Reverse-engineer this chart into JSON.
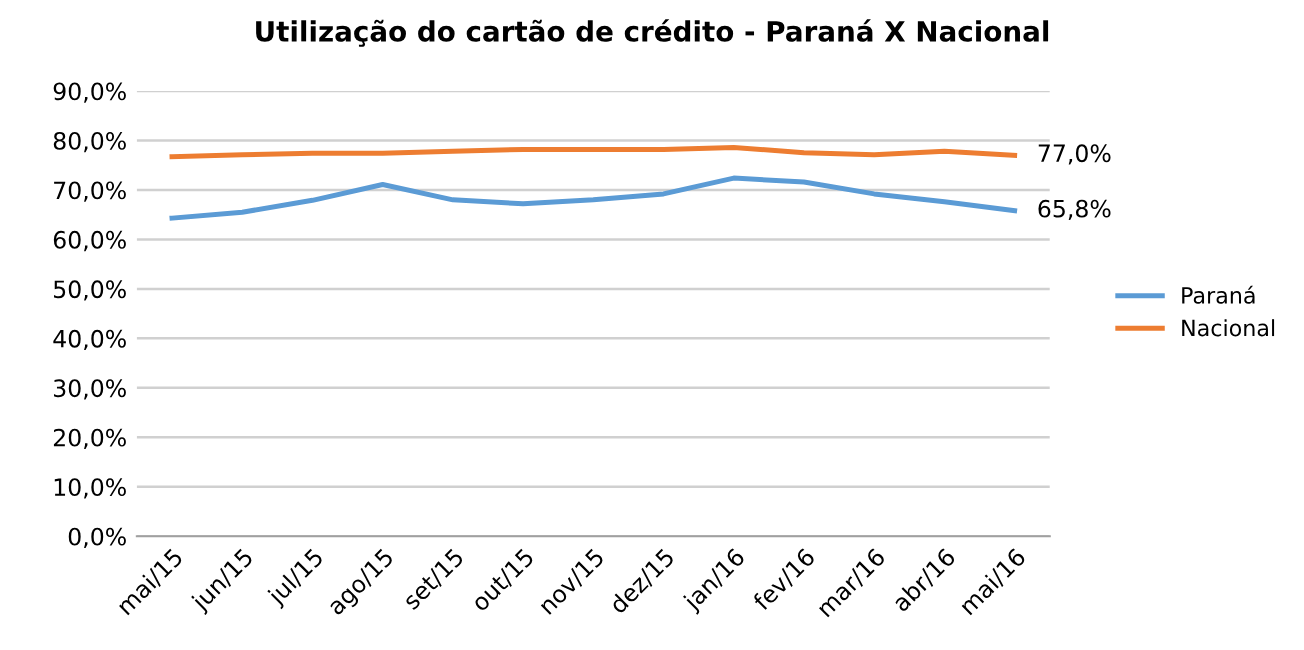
{
  "chart_data": {
    "type": "line",
    "title": "Utilização do cartão de crédito - Paraná X Nacional",
    "categories": [
      "mai/15",
      "jun/15",
      "jul/15",
      "ago/15",
      "set/15",
      "out/15",
      "nov/15",
      "dez/15",
      "jan/16",
      "fev/16",
      "mar/16",
      "abr/16",
      "mai/16"
    ],
    "series": [
      {
        "name": "Paraná",
        "color": "#5b9bd5",
        "values": [
          64.3,
          65.5,
          67.9,
          71.1,
          68.0,
          67.2,
          68.0,
          69.2,
          72.4,
          71.6,
          69.2,
          67.6,
          65.8
        ],
        "value_labels": [
          null,
          null,
          null,
          null,
          null,
          null,
          null,
          null,
          null,
          null,
          null,
          null,
          "65,8%"
        ]
      },
      {
        "name": "Nacional",
        "color": "#ed7d31",
        "values": [
          76.7,
          77.1,
          77.4,
          77.4,
          77.8,
          78.2,
          78.2,
          78.2,
          78.6,
          77.5,
          77.1,
          77.8,
          77.0
        ],
        "value_labels": [
          null,
          null,
          null,
          null,
          null,
          null,
          null,
          null,
          null,
          null,
          null,
          null,
          "77,0%"
        ]
      }
    ],
    "ylim": [
      0,
      90
    ],
    "yticks": [
      {
        "value": 0,
        "label": "0,0%"
      },
      {
        "value": 10,
        "label": "10,0%"
      },
      {
        "value": 20,
        "label": "20,0%"
      },
      {
        "value": 30,
        "label": "30,0%"
      },
      {
        "value": 40,
        "label": "40,0%"
      },
      {
        "value": 50,
        "label": "50,0%"
      },
      {
        "value": 60,
        "label": "60,0%"
      },
      {
        "value": 70,
        "label": "70,0%"
      },
      {
        "value": 80,
        "label": "80,0%"
      },
      {
        "value": 90,
        "label": "90,0%"
      }
    ],
    "grid": "y",
    "legend": "right",
    "marker": "none",
    "line_style": "solid"
  }
}
